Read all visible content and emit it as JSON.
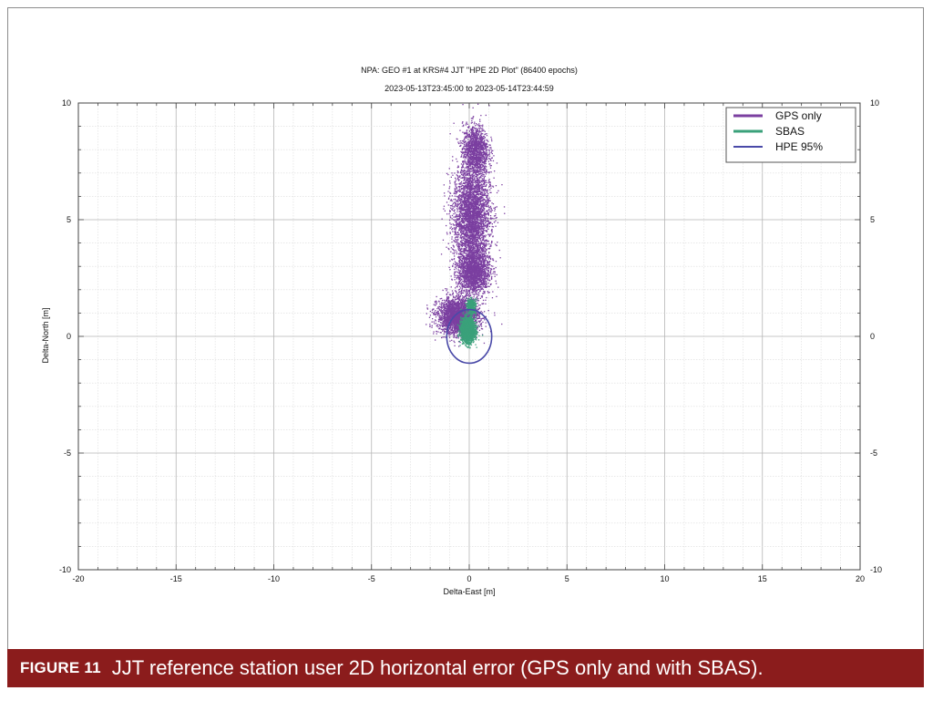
{
  "chart_data": {
    "type": "scatter",
    "title": "NPA: GEO #1 at KRS#4 JJT \"HPE 2D Plot\" (86400 epochs)",
    "subtitle": "2023-05-13T23:45:00 to 2023-05-14T23:44:59",
    "xlabel": "Delta-East [m]",
    "ylabel": "Delta-North [m]",
    "xlim": [
      -20,
      20
    ],
    "ylim": [
      -10,
      10
    ],
    "x_ticks": [
      "-20",
      "-15",
      "-10",
      "-5",
      "0",
      "5",
      "10",
      "15",
      "20"
    ],
    "y_ticks": [
      "10",
      "5",
      "0",
      "-5",
      "-10"
    ],
    "grid": true,
    "legend_position": "top-right",
    "series": [
      {
        "name": "GPS only",
        "color": "#7b3fa0",
        "marker": "point",
        "clusters": [
          {
            "center": [
              0.1,
              5.2
            ],
            "spread": [
              0.85,
              2.0
            ],
            "share": 0.38
          },
          {
            "center": [
              0.3,
              8.0
            ],
            "spread": [
              0.6,
              1.0
            ],
            "share": 0.14
          },
          {
            "center": [
              -0.6,
              0.9
            ],
            "spread": [
              0.95,
              0.7
            ],
            "share": 0.28
          },
          {
            "center": [
              0.2,
              2.8
            ],
            "spread": [
              0.75,
              0.9
            ],
            "share": 0.2
          }
        ],
        "extent": {
          "east": [
            -3.7,
            4.0
          ],
          "north": [
            -1.9,
            10.0
          ]
        }
      },
      {
        "name": "SBAS",
        "color": "#3aa17a",
        "marker": "point",
        "clusters": [
          {
            "center": [
              -0.1,
              0.3
            ],
            "spread": [
              0.32,
              0.45
            ],
            "share": 0.85
          },
          {
            "center": [
              0.1,
              1.3
            ],
            "spread": [
              0.2,
              0.3
            ],
            "share": 0.15
          }
        ],
        "extent": {
          "east": [
            -0.9,
            0.8
          ],
          "north": [
            -0.5,
            1.7
          ]
        }
      },
      {
        "name": "HPE 95%",
        "color": "#4a4aa8",
        "type": "circle",
        "center": [
          0.0,
          0.0
        ],
        "radius": 1.15
      }
    ]
  },
  "caption": {
    "label": "FIGURE 11",
    "text": "JJT reference station user 2D horizontal error (GPS only and with SBAS)."
  }
}
